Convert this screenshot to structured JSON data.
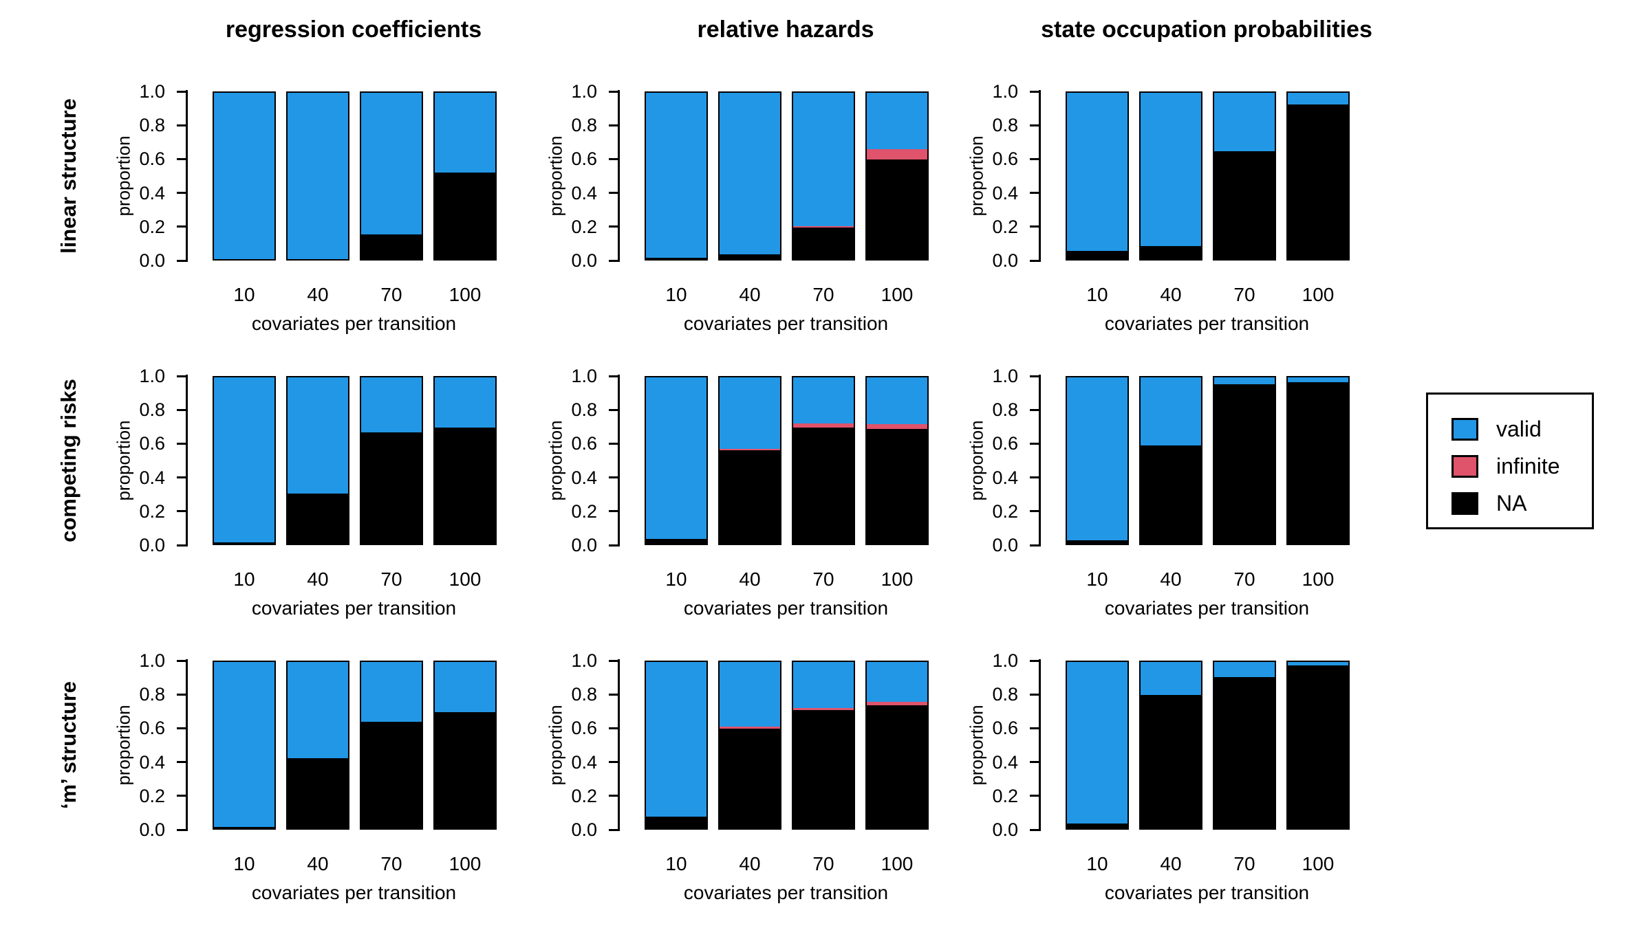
{
  "figure": {
    "col_titles": [
      "regression coefficients",
      "relative hazards",
      "state occupation probabilities"
    ],
    "row_labels": [
      "linear structure",
      "competing risks",
      "‘m’ structure"
    ]
  },
  "colors": {
    "valid": "#2297E6",
    "infinite": "#DF536B",
    "na": "#000000"
  },
  "legend": {
    "items": [
      {
        "label": "valid",
        "color_key": "valid"
      },
      {
        "label": "infinite",
        "color_key": "infinite"
      },
      {
        "label": "NA",
        "color_key": "na"
      }
    ]
  },
  "chart_data": [
    {
      "type": "bar",
      "stacked": true,
      "row": "linear structure",
      "col": "regression coefficients",
      "categories": [
        "10",
        "40",
        "70",
        "100"
      ],
      "series": [
        {
          "name": "NA",
          "color_key": "na",
          "values": [
            0.0,
            0.0,
            0.15,
            0.52
          ]
        },
        {
          "name": "infinite",
          "color_key": "infinite",
          "values": [
            0.0,
            0.0,
            0.0,
            0.0
          ]
        },
        {
          "name": "valid",
          "color_key": "valid",
          "values": [
            1.0,
            1.0,
            0.85,
            0.48
          ]
        }
      ],
      "xlabel": "covariates per transition",
      "ylabel": "proportion",
      "ylim": [
        0,
        1
      ],
      "yticks": [
        0.0,
        0.2,
        0.4,
        0.6,
        0.8,
        1.0
      ],
      "ytick_labels": [
        "0.0",
        "0.2",
        "0.4",
        "0.6",
        "0.8",
        "1.0"
      ]
    },
    {
      "type": "bar",
      "stacked": true,
      "row": "linear structure",
      "col": "relative hazards",
      "categories": [
        "10",
        "40",
        "70",
        "100"
      ],
      "series": [
        {
          "name": "NA",
          "color_key": "na",
          "values": [
            0.01,
            0.03,
            0.19,
            0.6
          ]
        },
        {
          "name": "infinite",
          "color_key": "infinite",
          "values": [
            0.0,
            0.0,
            0.01,
            0.06
          ]
        },
        {
          "name": "valid",
          "color_key": "valid",
          "values": [
            0.99,
            0.97,
            0.8,
            0.34
          ]
        }
      ],
      "xlabel": "covariates per transition",
      "ylabel": "proportion",
      "ylim": [
        0,
        1
      ],
      "yticks": [
        0.0,
        0.2,
        0.4,
        0.6,
        0.8,
        1.0
      ],
      "ytick_labels": [
        "0.0",
        "0.2",
        "0.4",
        "0.6",
        "0.8",
        "1.0"
      ]
    },
    {
      "type": "bar",
      "stacked": true,
      "row": "linear structure",
      "col": "state occupation probabilities",
      "categories": [
        "10",
        "40",
        "70",
        "100"
      ],
      "series": [
        {
          "name": "NA",
          "color_key": "na",
          "values": [
            0.05,
            0.08,
            0.65,
            0.93
          ]
        },
        {
          "name": "infinite",
          "color_key": "infinite",
          "values": [
            0.0,
            0.0,
            0.0,
            0.0
          ]
        },
        {
          "name": "valid",
          "color_key": "valid",
          "values": [
            0.95,
            0.92,
            0.35,
            0.07
          ]
        }
      ],
      "xlabel": "covariates per transition",
      "ylabel": "proportion",
      "ylim": [
        0,
        1
      ],
      "yticks": [
        0.0,
        0.2,
        0.4,
        0.6,
        0.8,
        1.0
      ],
      "ytick_labels": [
        "0.0",
        "0.2",
        "0.4",
        "0.6",
        "0.8",
        "1.0"
      ]
    },
    {
      "type": "bar",
      "stacked": true,
      "row": "competing risks",
      "col": "regression coefficients",
      "categories": [
        "10",
        "40",
        "70",
        "100"
      ],
      "series": [
        {
          "name": "NA",
          "color_key": "na",
          "values": [
            0.01,
            0.3,
            0.67,
            0.7
          ]
        },
        {
          "name": "infinite",
          "color_key": "infinite",
          "values": [
            0.0,
            0.0,
            0.0,
            0.0
          ]
        },
        {
          "name": "valid",
          "color_key": "valid",
          "values": [
            0.99,
            0.7,
            0.33,
            0.3
          ]
        }
      ],
      "xlabel": "covariates per transition",
      "ylabel": "proportion",
      "ylim": [
        0,
        1
      ],
      "yticks": [
        0.0,
        0.2,
        0.4,
        0.6,
        0.8,
        1.0
      ],
      "ytick_labels": [
        "0.0",
        "0.2",
        "0.4",
        "0.6",
        "0.8",
        "1.0"
      ]
    },
    {
      "type": "bar",
      "stacked": true,
      "row": "competing risks",
      "col": "relative hazards",
      "categories": [
        "10",
        "40",
        "70",
        "100"
      ],
      "series": [
        {
          "name": "NA",
          "color_key": "na",
          "values": [
            0.03,
            0.56,
            0.7,
            0.69
          ]
        },
        {
          "name": "infinite",
          "color_key": "infinite",
          "values": [
            0.0,
            0.01,
            0.025,
            0.03
          ]
        },
        {
          "name": "valid",
          "color_key": "valid",
          "values": [
            0.97,
            0.43,
            0.275,
            0.28
          ]
        }
      ],
      "xlabel": "covariates per transition",
      "ylabel": "proportion",
      "ylim": [
        0,
        1
      ],
      "yticks": [
        0.0,
        0.2,
        0.4,
        0.6,
        0.8,
        1.0
      ],
      "ytick_labels": [
        "0.0",
        "0.2",
        "0.4",
        "0.6",
        "0.8",
        "1.0"
      ]
    },
    {
      "type": "bar",
      "stacked": true,
      "row": "competing risks",
      "col": "state occupation probabilities",
      "categories": [
        "10",
        "40",
        "70",
        "100"
      ],
      "series": [
        {
          "name": "NA",
          "color_key": "na",
          "values": [
            0.02,
            0.59,
            0.96,
            0.97
          ]
        },
        {
          "name": "infinite",
          "color_key": "infinite",
          "values": [
            0.0,
            0.0,
            0.0,
            0.0
          ]
        },
        {
          "name": "valid",
          "color_key": "valid",
          "values": [
            0.98,
            0.41,
            0.04,
            0.03
          ]
        }
      ],
      "xlabel": "covariates per transition",
      "ylabel": "proportion",
      "ylim": [
        0,
        1
      ],
      "yticks": [
        0.0,
        0.2,
        0.4,
        0.6,
        0.8,
        1.0
      ],
      "ytick_labels": [
        "0.0",
        "0.2",
        "0.4",
        "0.6",
        "0.8",
        "1.0"
      ]
    },
    {
      "type": "bar",
      "stacked": true,
      "row": "'m' structure",
      "col": "regression coefficients",
      "categories": [
        "10",
        "40",
        "70",
        "100"
      ],
      "series": [
        {
          "name": "NA",
          "color_key": "na",
          "values": [
            0.01,
            0.42,
            0.64,
            0.7
          ]
        },
        {
          "name": "infinite",
          "color_key": "infinite",
          "values": [
            0.0,
            0.0,
            0.0,
            0.0
          ]
        },
        {
          "name": "valid",
          "color_key": "valid",
          "values": [
            0.99,
            0.58,
            0.36,
            0.3
          ]
        }
      ],
      "xlabel": "covariates per transition",
      "ylabel": "proportion",
      "ylim": [
        0,
        1
      ],
      "yticks": [
        0.0,
        0.2,
        0.4,
        0.6,
        0.8,
        1.0
      ],
      "ytick_labels": [
        "0.0",
        "0.2",
        "0.4",
        "0.6",
        "0.8",
        "1.0"
      ]
    },
    {
      "type": "bar",
      "stacked": true,
      "row": "'m' structure",
      "col": "relative hazards",
      "categories": [
        "10",
        "40",
        "70",
        "100"
      ],
      "series": [
        {
          "name": "NA",
          "color_key": "na",
          "values": [
            0.07,
            0.6,
            0.71,
            0.74
          ]
        },
        {
          "name": "infinite",
          "color_key": "infinite",
          "values": [
            0.0,
            0.01,
            0.015,
            0.02
          ]
        },
        {
          "name": "valid",
          "color_key": "valid",
          "values": [
            0.93,
            0.39,
            0.275,
            0.24
          ]
        }
      ],
      "xlabel": "covariates per transition",
      "ylabel": "proportion",
      "ylim": [
        0,
        1
      ],
      "yticks": [
        0.0,
        0.2,
        0.4,
        0.6,
        0.8,
        1.0
      ],
      "ytick_labels": [
        "0.0",
        "0.2",
        "0.4",
        "0.6",
        "0.8",
        "1.0"
      ]
    },
    {
      "type": "bar",
      "stacked": true,
      "row": "'m' structure",
      "col": "state occupation probabilities",
      "categories": [
        "10",
        "40",
        "70",
        "100"
      ],
      "series": [
        {
          "name": "NA",
          "color_key": "na",
          "values": [
            0.03,
            0.8,
            0.91,
            0.98
          ]
        },
        {
          "name": "infinite",
          "color_key": "infinite",
          "values": [
            0.0,
            0.0,
            0.0,
            0.0
          ]
        },
        {
          "name": "valid",
          "color_key": "valid",
          "values": [
            0.97,
            0.2,
            0.09,
            0.02
          ]
        }
      ],
      "xlabel": "covariates per transition",
      "ylabel": "proportion",
      "ylim": [
        0,
        1
      ],
      "yticks": [
        0.0,
        0.2,
        0.4,
        0.6,
        0.8,
        1.0
      ],
      "ytick_labels": [
        "0.0",
        "0.2",
        "0.4",
        "0.6",
        "0.8",
        "1.0"
      ]
    }
  ]
}
